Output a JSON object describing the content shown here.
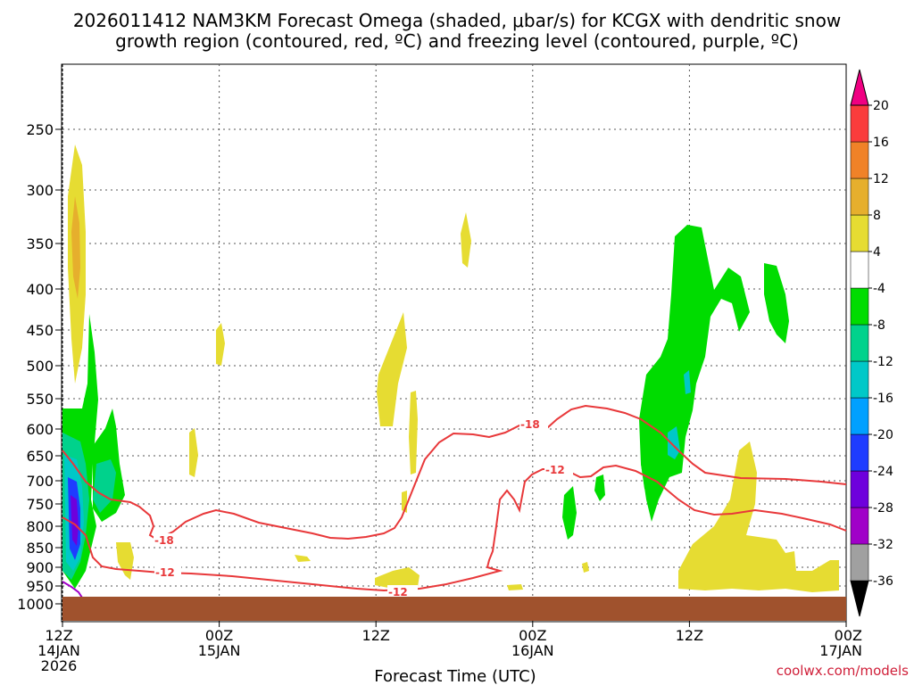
{
  "chart_data": {
    "type": "heatmap",
    "title_line1": "2026011412 NAM3KM Forecast Omega (shaded, μbar/s) for KCGX with dendritic snow",
    "title_line2": "growth region (contoured, red, ºC) and freezing level (contoured, purple, ºC)",
    "xlabel": "Forecast Time (UTC)",
    "credit": "coolwx.com/models",
    "y_ticks": [
      "250",
      "300",
      "350",
      "400",
      "450",
      "500",
      "550",
      "600",
      "650",
      "700",
      "750",
      "800",
      "850",
      "900",
      "950",
      "1000"
    ],
    "x_ticks": [
      {
        "line1": "12Z",
        "line2": "14JAN",
        "line3": "2026"
      },
      {
        "line1": "00Z",
        "line2": "15JAN",
        "line3": ""
      },
      {
        "line1": "12Z",
        "line2": "",
        "line3": ""
      },
      {
        "line1": "00Z",
        "line2": "16JAN",
        "line3": ""
      },
      {
        "line1": "12Z",
        "line2": "",
        "line3": ""
      },
      {
        "line1": "00Z",
        "line2": "17JAN",
        "line3": ""
      }
    ],
    "colorbar": {
      "colors": [
        "#000000",
        "#a0a0a0",
        "#a000c8",
        "#6e00dc",
        "#1e3cff",
        "#00a0ff",
        "#00c8c8",
        "#00d28c",
        "#00dc00",
        "#ffffff",
        "#e6dc32",
        "#e6af2d",
        "#f08228",
        "#fa3c3c",
        "#f00082"
      ],
      "labels": [
        "-36",
        "-32",
        "-28",
        "-24",
        "-20",
        "-16",
        "-12",
        "-8",
        "-4",
        "4",
        "8",
        "12",
        "16",
        "20"
      ]
    },
    "contour_labels": [
      "-18",
      "-12",
      "-18",
      "-12",
      "-12"
    ],
    "shading_colors": {
      "yellow": "#e6dc32",
      "orange": "#e6af2d",
      "green": "#00dc00",
      "teal": "#00d28c",
      "cyan": "#00c8c8",
      "blue": "#1e3cff",
      "purple": "#a000c8",
      "ground": "#a0522d",
      "contour_red": "#e8383a",
      "contour_purple": "#a000c8"
    }
  }
}
